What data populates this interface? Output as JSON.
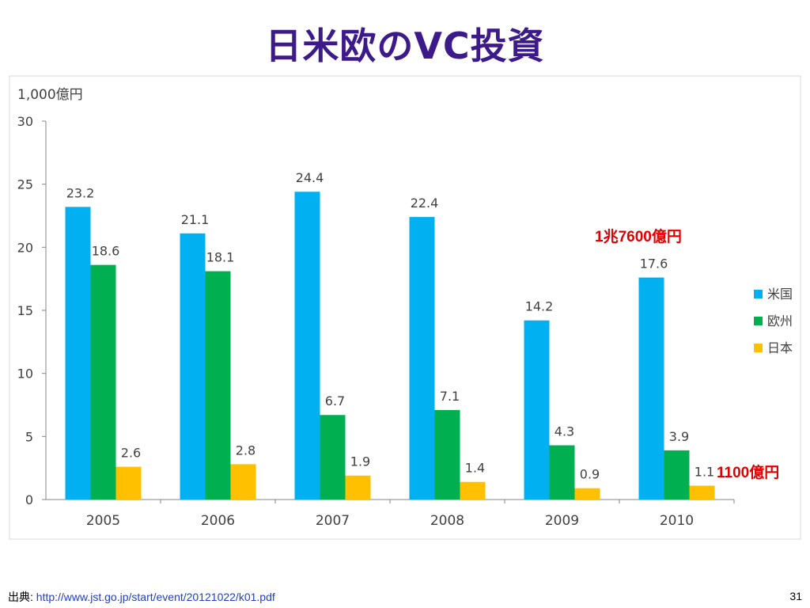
{
  "slide": {
    "title": "日米欧のVC投資",
    "source_label": "出典:",
    "source_url": "http://www.jst.go.jp/start/event/20121022/k01.pdf",
    "page_number": "31"
  },
  "annotations": {
    "us_2010": "1兆7600億円",
    "jp_2010": "1100億円"
  },
  "chart_data": {
    "type": "bar",
    "title": "",
    "unit_label": "1,000億円",
    "categories": [
      "2005",
      "2006",
      "2007",
      "2008",
      "2009",
      "2010"
    ],
    "series": [
      {
        "name": "米国",
        "color": "#00b0f0",
        "values": [
          23.2,
          21.1,
          24.4,
          22.4,
          14.2,
          17.6
        ]
      },
      {
        "name": "欧州",
        "color": "#00b050",
        "values": [
          18.6,
          18.1,
          6.7,
          7.1,
          4.3,
          3.9
        ]
      },
      {
        "name": "日本",
        "color": "#ffc000",
        "values": [
          2.6,
          2.8,
          1.9,
          1.4,
          0.9,
          1.1
        ]
      }
    ],
    "ylim": [
      0,
      30
    ],
    "yticks": [
      0,
      5,
      10,
      15,
      20,
      25,
      30
    ],
    "grid": false,
    "legend_position": "right"
  }
}
